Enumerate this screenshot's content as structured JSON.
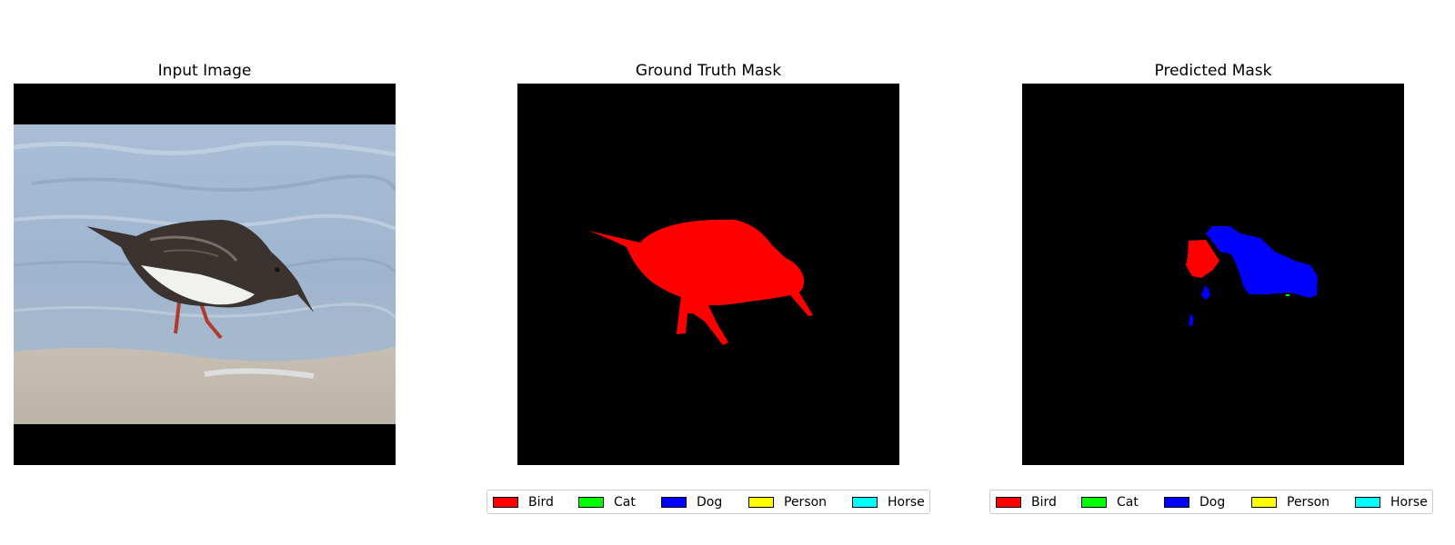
{
  "panels": [
    {
      "title": "Input Image"
    },
    {
      "title": "Ground Truth Mask"
    },
    {
      "title": "Predicted Mask"
    }
  ],
  "legend": {
    "items": [
      {
        "label": "Bird",
        "color": "#ff0000"
      },
      {
        "label": "Cat",
        "color": "#00ff00"
      },
      {
        "label": "Dog",
        "color": "#0000ff"
      },
      {
        "label": "Person",
        "color": "#ffff00"
      },
      {
        "label": "Horse",
        "color": "#00ffff"
      }
    ]
  },
  "colors": {
    "background_mask": "#000000",
    "bird": "#ff0000",
    "cat": "#00ff00",
    "dog": "#0000ff"
  }
}
